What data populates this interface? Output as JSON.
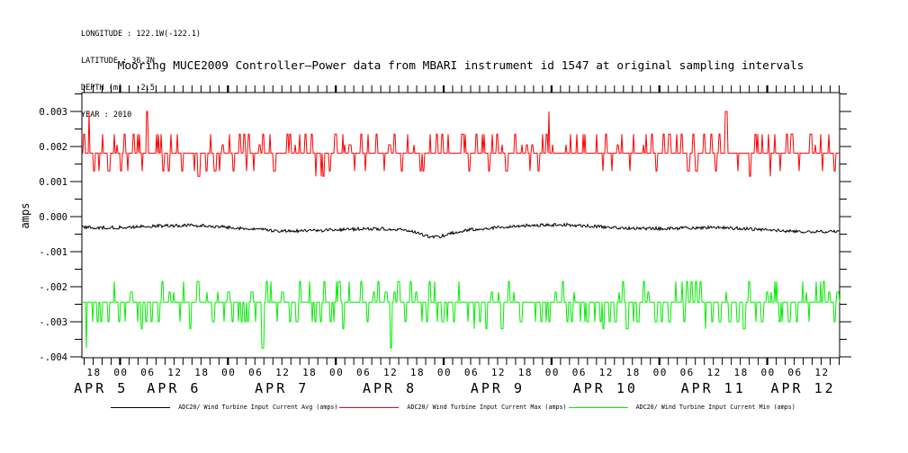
{
  "header": {
    "lines": [
      "LONGITUDE : 122.1W(-122.1)",
      "LATITUDE : 36.7N",
      "DEPTH (m) : -2.5",
      "YEAR : 2010"
    ]
  },
  "title": "Mooring MUCE2009 Controller—Power data from MBARI instrument id 1547 at original sampling intervals",
  "chart_data": {
    "type": "line",
    "title": "Mooring MUCE2009 Controller—Power data from MBARI instrument id 1547 at original sampling intervals",
    "xlabel": "",
    "ylabel": "amps",
    "ylim": [
      -0.004026,
      0.003538
    ],
    "x_start_hour": 15.5,
    "x_end_hour": 184.1,
    "x_minor_tick_hours": 2,
    "x_major_tick_hours": 6,
    "grid": false,
    "legend_position": "bottom",
    "ytick_labels": [
      "0.003",
      "0.002",
      "0.001",
      "0.000",
      "-.001",
      "-.002",
      "-.003",
      "-.004"
    ],
    "ytick_values": [
      0.003,
      0.002,
      0.001,
      0.0,
      -0.001,
      -0.002,
      -0.003,
      -0.004
    ],
    "ytick_minor_step": 0.0005,
    "hour_labels": [
      "18",
      "00",
      "06",
      "12",
      "18",
      "00",
      "06",
      "12",
      "18",
      "00",
      "06",
      "12",
      "18",
      "00",
      "06",
      "12",
      "18",
      "00",
      "06",
      "12",
      "18",
      "00",
      "06",
      "12",
      "18",
      "00",
      "06",
      "12"
    ],
    "hour_label_start": 18,
    "hour_label_step": 6,
    "date_labels": [
      {
        "label": "APR 5",
        "center_hour": 19.75
      },
      {
        "label": "APR 6",
        "center_hour": 36
      },
      {
        "label": "APR 7",
        "center_hour": 60
      },
      {
        "label": "APR 8",
        "center_hour": 84
      },
      {
        "label": "APR 9",
        "center_hour": 108
      },
      {
        "label": "APR 10",
        "center_hour": 132
      },
      {
        "label": "APR 11",
        "center_hour": 156
      },
      {
        "label": "APR 12",
        "center_hour": 176
      }
    ],
    "seed": 1337,
    "series": [
      {
        "name": "ADC20/ Wind Turbine Input Current Avg (amps)",
        "color": "#000000",
        "kind": "noisy",
        "base": -0.00033,
        "noise": 4.5e-05,
        "wander1_amp": 6e-05,
        "wander1_freq": 1.7,
        "wander1_phase": 0.15,
        "wander2_amp": 4e-05,
        "wander2_freq": 4.3,
        "wander2_phase": 0.6,
        "dip_center": 0.465,
        "dip_sigma": 0.02,
        "dip_depth": -0.0002
      },
      {
        "name": "ADC20/ Wind Turbine Input Current Max (amps)",
        "color": "#ff0000",
        "kind": "spiky",
        "base": 0.00181,
        "base_run": 6,
        "spike_run": 2.4,
        "levels": [
          {
            "v": 0.00235,
            "w": 0.42
          },
          {
            "v": 0.003,
            "w": 0.025
          },
          {
            "v": 0.00205,
            "w": 0.1
          },
          {
            "v": 0.0013,
            "w": 0.22
          },
          {
            "v": 0.00115,
            "w": 0.08
          }
        ]
      },
      {
        "name": "ADC20/ Wind Turbine Input Current Min (amps)",
        "color": "#00ee00",
        "kind": "spiky",
        "base": -0.00244,
        "base_run": 6,
        "spike_run": 2.4,
        "levels": [
          {
            "v": -0.003,
            "w": 0.42
          },
          {
            "v": -0.0032,
            "w": 0.08
          },
          {
            "v": -0.00375,
            "w": 0.018
          },
          {
            "v": -0.0039,
            "w": 0.007
          },
          {
            "v": -0.00185,
            "w": 0.28
          },
          {
            "v": -0.00215,
            "w": 0.12
          }
        ]
      }
    ]
  },
  "legend": {
    "items": [
      {
        "label": "ADC20/ Wind Turbine Input Current Avg (amps)",
        "color": "#000000"
      },
      {
        "label": "ADC20/ Wind Turbine Input Current Max (amps)",
        "color": "#ff0000"
      },
      {
        "label": "ADC20/ Wind Turbine Input Current Min (amps)",
        "color": "#00ee00"
      }
    ]
  }
}
